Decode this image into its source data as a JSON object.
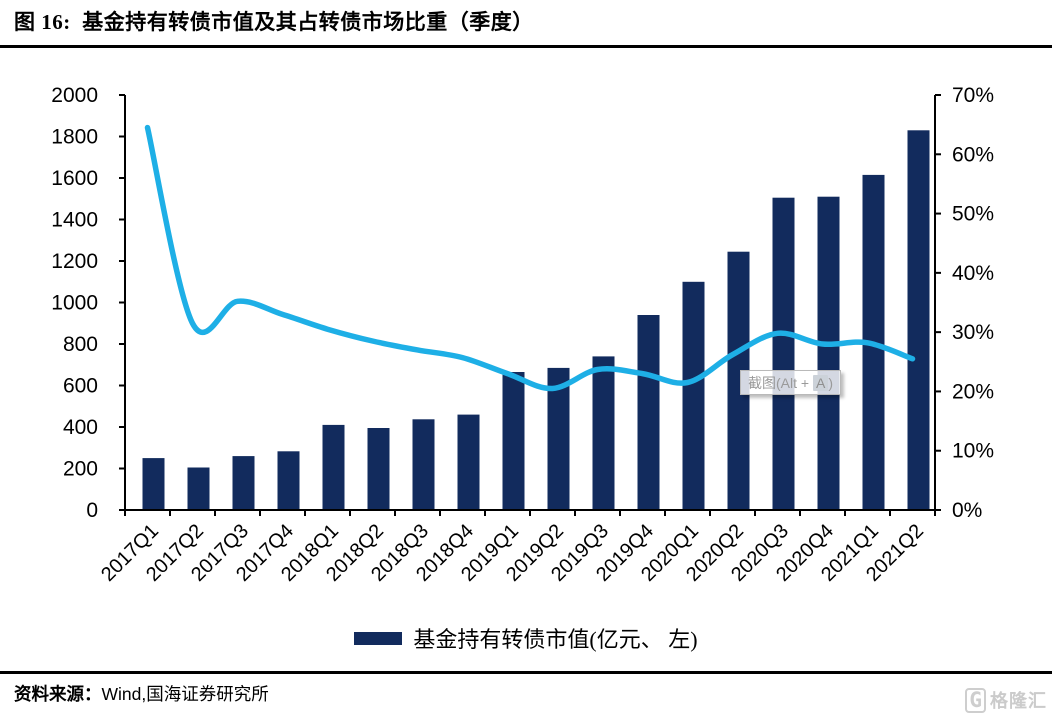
{
  "page": {
    "title": "图 16:  基金持有转债市值及其占转债市场比重（季度）"
  },
  "chart_data": {
    "type": "bar+line",
    "categories": [
      "2017Q1",
      "2017Q2",
      "2017Q3",
      "2017Q4",
      "2018Q1",
      "2018Q2",
      "2018Q3",
      "2018Q4",
      "2019Q1",
      "2019Q2",
      "2019Q3",
      "2019Q4",
      "2020Q1",
      "2020Q2",
      "2020Q3",
      "2020Q4",
      "2021Q1",
      "2021Q2"
    ],
    "series": [
      {
        "id": "fund_convertible_bond_value_bar",
        "label": "基金持有转债市值(亿元、 左)",
        "type": "bar",
        "axis": "left",
        "color": "#122b5d",
        "values": [
          250,
          205,
          260,
          283,
          410,
          395,
          437,
          460,
          665,
          685,
          740,
          940,
          1100,
          1245,
          1505,
          1510,
          1615,
          1830
        ]
      },
      {
        "id": "share_of_convertible_market_line",
        "label": "",
        "type": "line",
        "axis": "right",
        "color": "#1eafe6",
        "values": [
          64.5,
          31.5,
          35.2,
          33.0,
          30.5,
          28.5,
          27.0,
          25.7,
          23.0,
          20.5,
          23.7,
          23.0,
          21.5,
          26.2,
          29.8,
          28.0,
          28.2,
          25.5
        ]
      }
    ],
    "left_axis": {
      "min": 0,
      "max": 2000,
      "step": 200,
      "tick_labels": [
        "0",
        "200",
        "400",
        "600",
        "800",
        "1000",
        "1200",
        "1400",
        "1600",
        "1800",
        "2000"
      ]
    },
    "right_axis": {
      "min": 0,
      "max": 70,
      "step": 10,
      "tick_labels": [
        "0%",
        "10%",
        "20%",
        "30%",
        "40%",
        "50%",
        "60%",
        "70%"
      ]
    },
    "grid": false,
    "legend_position": "bottom"
  },
  "tooltip": {
    "prefix": "截图(Alt + ",
    "key": "A",
    "suffix": ")"
  },
  "footer": {
    "source_label": "资料来源：",
    "source_value": "Wind,国海证券研究所"
  },
  "watermark": {
    "icon_letter": "G",
    "text": "格隆汇"
  }
}
